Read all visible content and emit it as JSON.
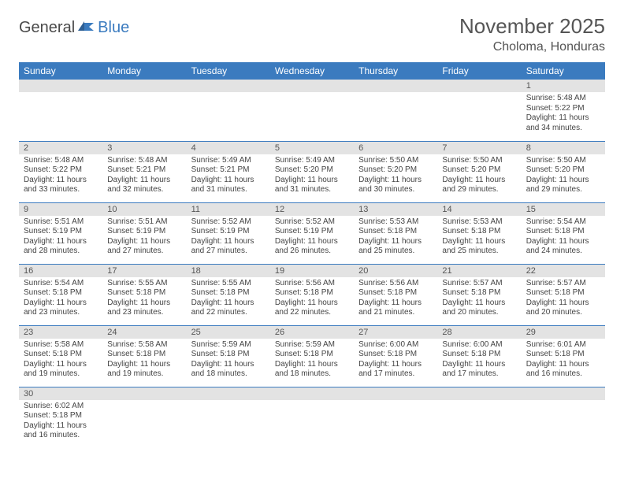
{
  "logo": {
    "dark": "General",
    "blue": "Blue"
  },
  "title": "November 2025",
  "location": "Choloma, Honduras",
  "colors": {
    "header_bg": "#3b7bbf",
    "header_fg": "#ffffff",
    "daynum_bg": "#e3e3e3",
    "cell_border": "#3b7bbf",
    "text": "#444444",
    "title_color": "#555555"
  },
  "day_headers": [
    "Sunday",
    "Monday",
    "Tuesday",
    "Wednesday",
    "Thursday",
    "Friday",
    "Saturday"
  ],
  "weeks": [
    [
      {
        "n": "",
        "sr": "",
        "ss": "",
        "d1": "",
        "d2": ""
      },
      {
        "n": "",
        "sr": "",
        "ss": "",
        "d1": "",
        "d2": ""
      },
      {
        "n": "",
        "sr": "",
        "ss": "",
        "d1": "",
        "d2": ""
      },
      {
        "n": "",
        "sr": "",
        "ss": "",
        "d1": "",
        "d2": ""
      },
      {
        "n": "",
        "sr": "",
        "ss": "",
        "d1": "",
        "d2": ""
      },
      {
        "n": "",
        "sr": "",
        "ss": "",
        "d1": "",
        "d2": ""
      },
      {
        "n": "1",
        "sr": "Sunrise: 5:48 AM",
        "ss": "Sunset: 5:22 PM",
        "d1": "Daylight: 11 hours",
        "d2": "and 34 minutes."
      }
    ],
    [
      {
        "n": "2",
        "sr": "Sunrise: 5:48 AM",
        "ss": "Sunset: 5:22 PM",
        "d1": "Daylight: 11 hours",
        "d2": "and 33 minutes."
      },
      {
        "n": "3",
        "sr": "Sunrise: 5:48 AM",
        "ss": "Sunset: 5:21 PM",
        "d1": "Daylight: 11 hours",
        "d2": "and 32 minutes."
      },
      {
        "n": "4",
        "sr": "Sunrise: 5:49 AM",
        "ss": "Sunset: 5:21 PM",
        "d1": "Daylight: 11 hours",
        "d2": "and 31 minutes."
      },
      {
        "n": "5",
        "sr": "Sunrise: 5:49 AM",
        "ss": "Sunset: 5:20 PM",
        "d1": "Daylight: 11 hours",
        "d2": "and 31 minutes."
      },
      {
        "n": "6",
        "sr": "Sunrise: 5:50 AM",
        "ss": "Sunset: 5:20 PM",
        "d1": "Daylight: 11 hours",
        "d2": "and 30 minutes."
      },
      {
        "n": "7",
        "sr": "Sunrise: 5:50 AM",
        "ss": "Sunset: 5:20 PM",
        "d1": "Daylight: 11 hours",
        "d2": "and 29 minutes."
      },
      {
        "n": "8",
        "sr": "Sunrise: 5:50 AM",
        "ss": "Sunset: 5:20 PM",
        "d1": "Daylight: 11 hours",
        "d2": "and 29 minutes."
      }
    ],
    [
      {
        "n": "9",
        "sr": "Sunrise: 5:51 AM",
        "ss": "Sunset: 5:19 PM",
        "d1": "Daylight: 11 hours",
        "d2": "and 28 minutes."
      },
      {
        "n": "10",
        "sr": "Sunrise: 5:51 AM",
        "ss": "Sunset: 5:19 PM",
        "d1": "Daylight: 11 hours",
        "d2": "and 27 minutes."
      },
      {
        "n": "11",
        "sr": "Sunrise: 5:52 AM",
        "ss": "Sunset: 5:19 PM",
        "d1": "Daylight: 11 hours",
        "d2": "and 27 minutes."
      },
      {
        "n": "12",
        "sr": "Sunrise: 5:52 AM",
        "ss": "Sunset: 5:19 PM",
        "d1": "Daylight: 11 hours",
        "d2": "and 26 minutes."
      },
      {
        "n": "13",
        "sr": "Sunrise: 5:53 AM",
        "ss": "Sunset: 5:18 PM",
        "d1": "Daylight: 11 hours",
        "d2": "and 25 minutes."
      },
      {
        "n": "14",
        "sr": "Sunrise: 5:53 AM",
        "ss": "Sunset: 5:18 PM",
        "d1": "Daylight: 11 hours",
        "d2": "and 25 minutes."
      },
      {
        "n": "15",
        "sr": "Sunrise: 5:54 AM",
        "ss": "Sunset: 5:18 PM",
        "d1": "Daylight: 11 hours",
        "d2": "and 24 minutes."
      }
    ],
    [
      {
        "n": "16",
        "sr": "Sunrise: 5:54 AM",
        "ss": "Sunset: 5:18 PM",
        "d1": "Daylight: 11 hours",
        "d2": "and 23 minutes."
      },
      {
        "n": "17",
        "sr": "Sunrise: 5:55 AM",
        "ss": "Sunset: 5:18 PM",
        "d1": "Daylight: 11 hours",
        "d2": "and 23 minutes."
      },
      {
        "n": "18",
        "sr": "Sunrise: 5:55 AM",
        "ss": "Sunset: 5:18 PM",
        "d1": "Daylight: 11 hours",
        "d2": "and 22 minutes."
      },
      {
        "n": "19",
        "sr": "Sunrise: 5:56 AM",
        "ss": "Sunset: 5:18 PM",
        "d1": "Daylight: 11 hours",
        "d2": "and 22 minutes."
      },
      {
        "n": "20",
        "sr": "Sunrise: 5:56 AM",
        "ss": "Sunset: 5:18 PM",
        "d1": "Daylight: 11 hours",
        "d2": "and 21 minutes."
      },
      {
        "n": "21",
        "sr": "Sunrise: 5:57 AM",
        "ss": "Sunset: 5:18 PM",
        "d1": "Daylight: 11 hours",
        "d2": "and 20 minutes."
      },
      {
        "n": "22",
        "sr": "Sunrise: 5:57 AM",
        "ss": "Sunset: 5:18 PM",
        "d1": "Daylight: 11 hours",
        "d2": "and 20 minutes."
      }
    ],
    [
      {
        "n": "23",
        "sr": "Sunrise: 5:58 AM",
        "ss": "Sunset: 5:18 PM",
        "d1": "Daylight: 11 hours",
        "d2": "and 19 minutes."
      },
      {
        "n": "24",
        "sr": "Sunrise: 5:58 AM",
        "ss": "Sunset: 5:18 PM",
        "d1": "Daylight: 11 hours",
        "d2": "and 19 minutes."
      },
      {
        "n": "25",
        "sr": "Sunrise: 5:59 AM",
        "ss": "Sunset: 5:18 PM",
        "d1": "Daylight: 11 hours",
        "d2": "and 18 minutes."
      },
      {
        "n": "26",
        "sr": "Sunrise: 5:59 AM",
        "ss": "Sunset: 5:18 PM",
        "d1": "Daylight: 11 hours",
        "d2": "and 18 minutes."
      },
      {
        "n": "27",
        "sr": "Sunrise: 6:00 AM",
        "ss": "Sunset: 5:18 PM",
        "d1": "Daylight: 11 hours",
        "d2": "and 17 minutes."
      },
      {
        "n": "28",
        "sr": "Sunrise: 6:00 AM",
        "ss": "Sunset: 5:18 PM",
        "d1": "Daylight: 11 hours",
        "d2": "and 17 minutes."
      },
      {
        "n": "29",
        "sr": "Sunrise: 6:01 AM",
        "ss": "Sunset: 5:18 PM",
        "d1": "Daylight: 11 hours",
        "d2": "and 16 minutes."
      }
    ],
    [
      {
        "n": "30",
        "sr": "Sunrise: 6:02 AM",
        "ss": "Sunset: 5:18 PM",
        "d1": "Daylight: 11 hours",
        "d2": "and 16 minutes."
      },
      {
        "n": "",
        "sr": "",
        "ss": "",
        "d1": "",
        "d2": ""
      },
      {
        "n": "",
        "sr": "",
        "ss": "",
        "d1": "",
        "d2": ""
      },
      {
        "n": "",
        "sr": "",
        "ss": "",
        "d1": "",
        "d2": ""
      },
      {
        "n": "",
        "sr": "",
        "ss": "",
        "d1": "",
        "d2": ""
      },
      {
        "n": "",
        "sr": "",
        "ss": "",
        "d1": "",
        "d2": ""
      },
      {
        "n": "",
        "sr": "",
        "ss": "",
        "d1": "",
        "d2": ""
      }
    ]
  ]
}
